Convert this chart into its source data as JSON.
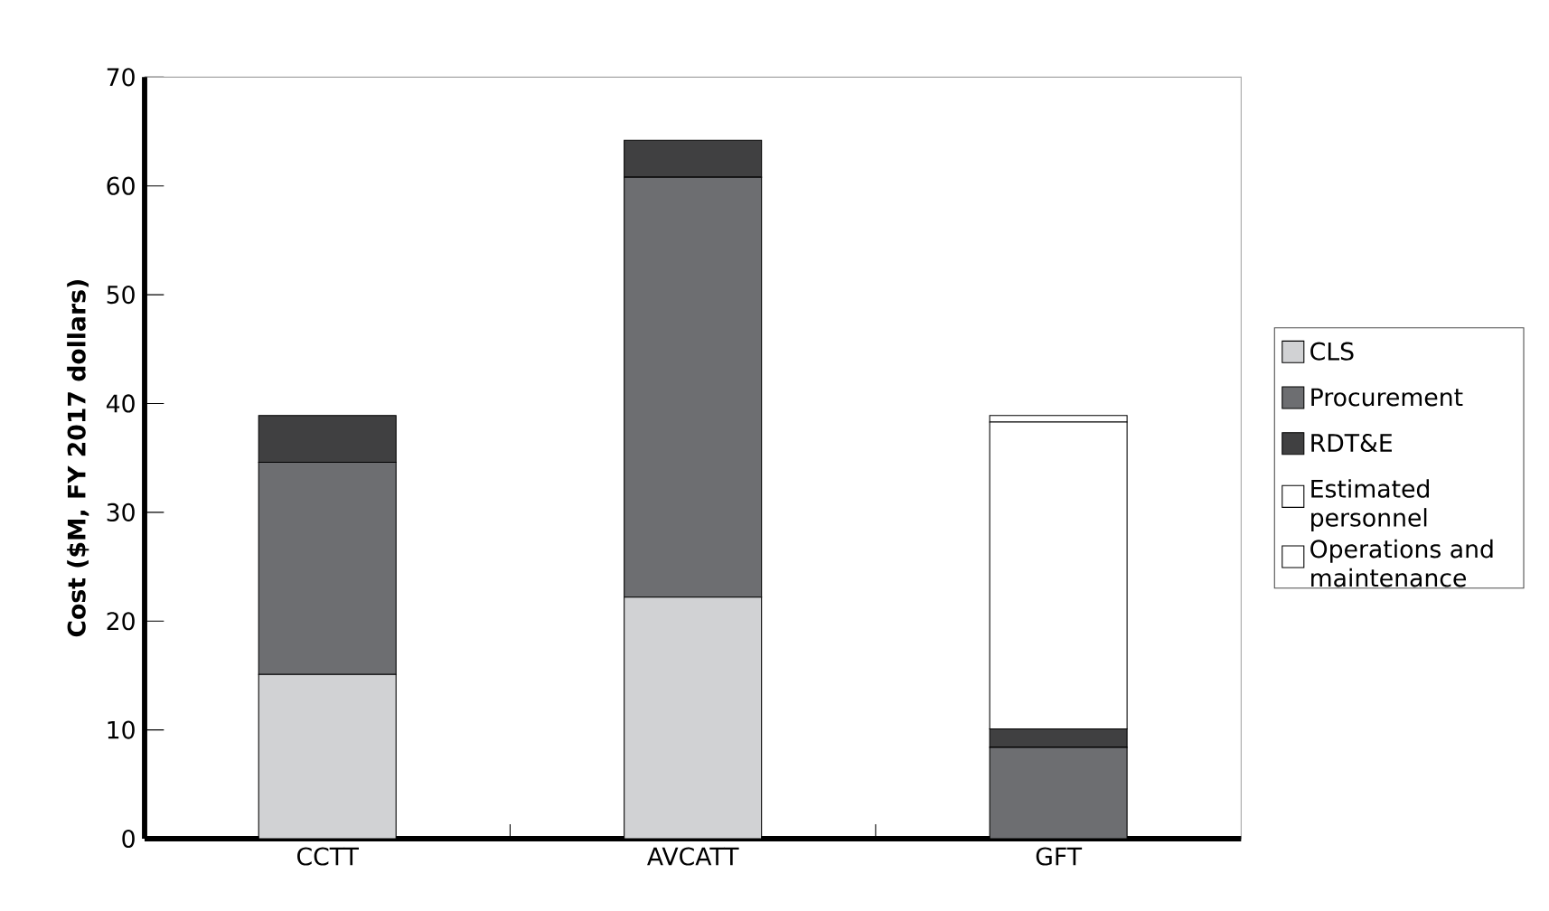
{
  "chart_data": {
    "type": "bar",
    "stacked": true,
    "ylabel": "Cost ($M, FY 2017 dollars)",
    "categories": [
      "CCTT",
      "AVCATT",
      "GFT"
    ],
    "series": [
      {
        "name": "CLS",
        "color": "#d1d2d4",
        "values": [
          15.1,
          22.2,
          0
        ]
      },
      {
        "name": "Procurement",
        "color": "#6d6e71",
        "values": [
          19.5,
          38.6,
          8.4
        ]
      },
      {
        "name": "RDT&E",
        "color": "#404041",
        "values": [
          4.3,
          3.4,
          1.7
        ]
      },
      {
        "name": "Estimated personnel",
        "color": "#ffffff",
        "values": [
          0,
          0,
          28.2
        ]
      },
      {
        "name": "Operations and maintenance",
        "color": "#ffffff",
        "values": [
          0,
          0,
          0.6
        ]
      }
    ],
    "ylim": [
      0,
      70
    ],
    "yticks": [
      0,
      10,
      20,
      30,
      40,
      50,
      60,
      70
    ],
    "grid": false,
    "legend": "right"
  }
}
